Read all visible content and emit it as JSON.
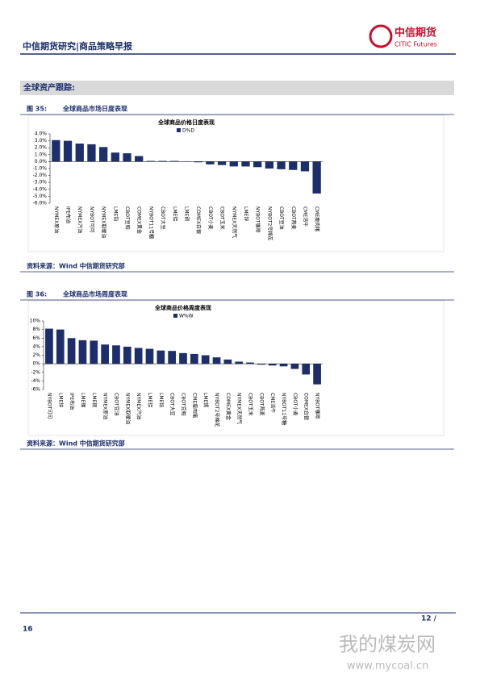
{
  "header": {
    "title": "中信期货研究|商品策略早报",
    "logo_cn": "中信期货",
    "logo_en": "CITIC Futures"
  },
  "section": "全球资产跟踪:",
  "chart_data": [
    {
      "type": "bar",
      "figure_label": "图 35:",
      "caption": "全球商品市场日度表现",
      "title": "全球商品价格日度表现",
      "source": "资料来源：Wind 中信期货研究部",
      "categories": [
        "NYMEX原油",
        "IPE布油",
        "NYMEX汽油",
        "NYBOT可可",
        "NYMEX取暖油",
        "LME铅",
        "CBOT豆粕",
        "COMEX黄金",
        "NYBOT11号糖",
        "CBOT大豆",
        "LME铝",
        "LME铜",
        "COMEX白银",
        "CBOT小麦",
        "CBOT玉米",
        "NYMEX天然气",
        "LME锌",
        "NYBOT咖啡",
        "NYBOT2号棉花",
        "CBOT豆油",
        "CBOT燕麦",
        "CME活牛",
        "CME瘦肉猪"
      ],
      "series": [
        {
          "name": "D%D",
          "color": "#1c2f6b",
          "values": [
            3.1,
            3.0,
            2.6,
            2.5,
            2.1,
            1.3,
            1.2,
            0.8,
            0.1,
            0.1,
            0.1,
            0.05,
            -0.1,
            -0.4,
            -0.5,
            -0.7,
            -0.7,
            -0.8,
            -1.0,
            -1.1,
            -1.2,
            -1.4,
            -4.6
          ]
        }
      ],
      "ylim": [
        -6,
        4
      ],
      "yticks": [
        {
          "value": 4,
          "label": "4.0%"
        },
        {
          "value": 3,
          "label": "3.0%"
        },
        {
          "value": 2,
          "label": "2.0%"
        },
        {
          "value": 1,
          "label": "1.0%"
        },
        {
          "value": 0,
          "label": "0.0%"
        },
        {
          "value": -1,
          "label": "-1.0%"
        },
        {
          "value": -2,
          "label": "-2.0%"
        },
        {
          "value": -3,
          "label": "-3.0%"
        },
        {
          "value": -4,
          "label": "-4.0%"
        },
        {
          "value": -5,
          "label": "-5.0%"
        },
        {
          "value": -6,
          "label": "-6.0%"
        }
      ],
      "legend": "top"
    },
    {
      "type": "bar",
      "figure_label": "图 36:",
      "caption": "全球商品市场周度表现",
      "title": "全球商品价格周度表现",
      "source": "资料来源：Wind 中信期货研究部",
      "categories": [
        "NYBOT可可",
        "LME锌",
        "IPE布油",
        "LME镍",
        "LME铜",
        "NYMEX原油",
        "CBOT豆油",
        "NYMEX取暖油",
        "NYMEX汽油",
        "LME铝",
        "LME铅",
        "CBOT大豆",
        "CBOT豆粕",
        "CME瘦肉猪",
        "LME锡",
        "NYBOT2号棉花",
        "COMEX黄金",
        "NYMEX天然气",
        "CBOT玉米",
        "CBOT燕麦",
        "CME活牛",
        "NYBOT11号糖",
        "CBOT小麦",
        "COMEX白银",
        "NYBOT咖啡"
      ],
      "series": [
        {
          "name": "W%W",
          "color": "#1c2f6b",
          "values": [
            8.2,
            8.0,
            6.0,
            5.5,
            5.4,
            4.5,
            4.3,
            4.0,
            3.7,
            3.5,
            3.1,
            3.0,
            2.5,
            2.3,
            2.0,
            1.5,
            1.0,
            0.5,
            0.3,
            -0.2,
            -0.4,
            -0.6,
            -1.2,
            -2.5,
            -4.8
          ]
        }
      ],
      "ylim": [
        -6,
        10
      ],
      "yticks": [
        {
          "value": 10,
          "label": "10%"
        },
        {
          "value": 8,
          "label": "8%"
        },
        {
          "value": 6,
          "label": "6%"
        },
        {
          "value": 4,
          "label": "4%"
        },
        {
          "value": 2,
          "label": "2%"
        },
        {
          "value": 0,
          "label": "0%"
        },
        {
          "value": -2,
          "label": "-2%"
        },
        {
          "value": -4,
          "label": "-4%"
        },
        {
          "value": -6,
          "label": "-6%"
        }
      ],
      "legend": "top"
    }
  ],
  "footer": {
    "page": "16",
    "page_right": "12 /"
  },
  "watermark": {
    "cn": "我的煤炭网",
    "url": "www.mycoal.cn"
  }
}
